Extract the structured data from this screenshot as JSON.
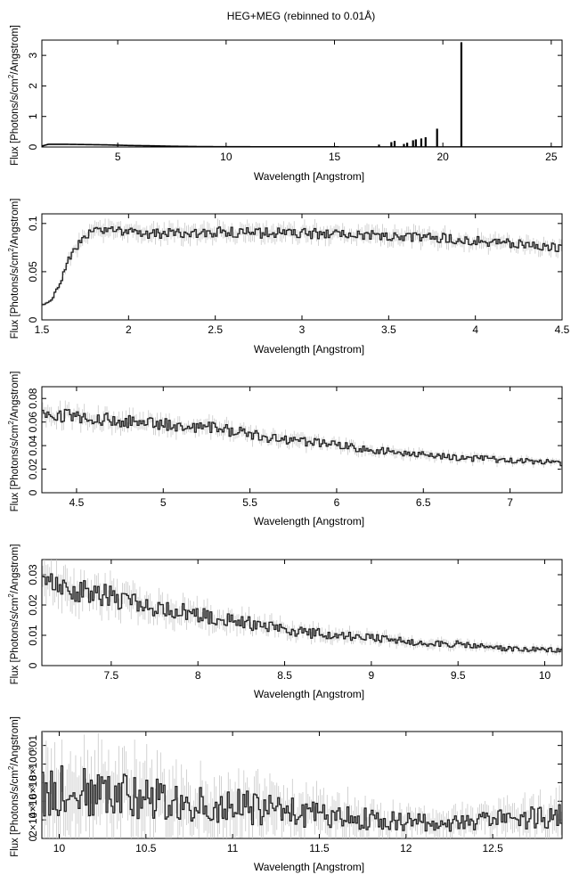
{
  "title": "HEG+MEG (rebinned to 0.01Å)",
  "ylabel_pre": "Flux [Photons/s/cm",
  "ylabel_sup": "2",
  "ylabel_post": "/Angstrom]",
  "chart_data": [
    {
      "type": "line",
      "xlabel": "Wavelength [Angstrom]",
      "xlim": [
        1.5,
        25.5
      ],
      "ylim": [
        0,
        3.5
      ],
      "xticks": [
        "5",
        "10",
        "15",
        "20",
        "25"
      ],
      "yticks": [
        "0",
        "1",
        "2",
        "3"
      ],
      "grid": false,
      "series": [
        {
          "continuum_x": [
            1.5,
            1.8,
            2.5,
            3.5,
            4.5,
            5.5,
            6.5,
            7.5,
            9,
            12,
            15,
            18,
            21,
            25.5
          ],
          "continuum_y": [
            0.03,
            0.09,
            0.09,
            0.08,
            0.07,
            0.05,
            0.04,
            0.025,
            0.012,
            0.006,
            0.004,
            0.003,
            0.002,
            0.001
          ],
          "lines_x": [
            17.05,
            17.62,
            17.77,
            18.2,
            18.35,
            18.62,
            18.75,
            19.0,
            19.2,
            19.73,
            20.85
          ],
          "lines_y": [
            0.08,
            0.16,
            0.2,
            0.1,
            0.14,
            0.22,
            0.25,
            0.28,
            0.32,
            0.6,
            3.43
          ]
        }
      ]
    },
    {
      "type": "line",
      "xlabel": "Wavelength [Angstrom]",
      "xlim": [
        1.5,
        4.5
      ],
      "ylim": [
        0,
        0.11
      ],
      "xticks": [
        "1.5",
        "2",
        "2.5",
        "3",
        "3.5",
        "4",
        "4.5"
      ],
      "yticks": [
        "0",
        "0.05",
        "0.1"
      ],
      "grid": false,
      "series": [
        {
          "x": [
            1.5,
            1.55,
            1.6,
            1.65,
            1.7,
            1.75,
            1.8,
            1.9,
            2.0,
            2.2,
            2.5,
            2.8,
            3.0,
            3.3,
            3.5,
            3.8,
            4.0,
            4.3,
            4.5
          ],
          "y": [
            0.015,
            0.02,
            0.035,
            0.06,
            0.075,
            0.085,
            0.092,
            0.092,
            0.09,
            0.09,
            0.091,
            0.09,
            0.09,
            0.088,
            0.087,
            0.085,
            0.082,
            0.078,
            0.074
          ]
        }
      ]
    },
    {
      "type": "line",
      "xlabel": "Wavelength [Angstrom]",
      "xlim": [
        4.3,
        7.3
      ],
      "ylim": [
        0,
        0.09
      ],
      "xticks": [
        "4.5",
        "5",
        "5.5",
        "6",
        "6.5",
        "7"
      ],
      "yticks": [
        "0",
        "0.02",
        "0.04",
        "0.06",
        "0.08"
      ],
      "grid": false,
      "series": [
        {
          "x": [
            4.3,
            4.6,
            5.0,
            5.3,
            5.6,
            6.0,
            6.4,
            6.8,
            7.1,
            7.3
          ],
          "y": [
            0.067,
            0.063,
            0.058,
            0.055,
            0.047,
            0.04,
            0.033,
            0.029,
            0.027,
            0.025
          ]
        }
      ]
    },
    {
      "type": "line",
      "xlabel": "Wavelength [Angstrom]",
      "xlim": [
        7.1,
        10.1
      ],
      "ylim": [
        0,
        0.035
      ],
      "xticks": [
        "7.5",
        "8",
        "8.5",
        "9",
        "9.5",
        "10"
      ],
      "yticks": [
        "0",
        "0.01",
        "0.02",
        "0.03"
      ],
      "grid": false,
      "series": [
        {
          "x": [
            7.1,
            7.4,
            7.7,
            8.0,
            8.3,
            8.6,
            8.9,
            9.2,
            9.5,
            9.8,
            10.1
          ],
          "y": [
            0.027,
            0.024,
            0.02,
            0.017,
            0.014,
            0.011,
            0.0095,
            0.008,
            0.007,
            0.0055,
            0.005
          ]
        }
      ]
    },
    {
      "type": "line",
      "xlabel": "Wavelength [Angstrom]",
      "xlim": [
        9.9,
        12.9
      ],
      "ylim": [
        0,
        0.0115
      ],
      "xticks": [
        "10",
        "10.5",
        "11",
        "11.5",
        "12",
        "12.5"
      ],
      "yticks": [
        "0",
        "2×10⁻³",
        "4×10⁻³",
        "6×10⁻³",
        "8×10⁻³",
        "0.01"
      ],
      "grid": false,
      "series": [
        {
          "x": [
            9.9,
            10.2,
            10.5,
            10.8,
            11.1,
            11.4,
            11.7,
            12.0,
            12.3,
            12.6,
            12.9
          ],
          "y": [
            0.0052,
            0.0048,
            0.0043,
            0.0038,
            0.0033,
            0.0027,
            0.0022,
            0.0018,
            0.0016,
            0.0021,
            0.0026
          ]
        }
      ]
    }
  ]
}
